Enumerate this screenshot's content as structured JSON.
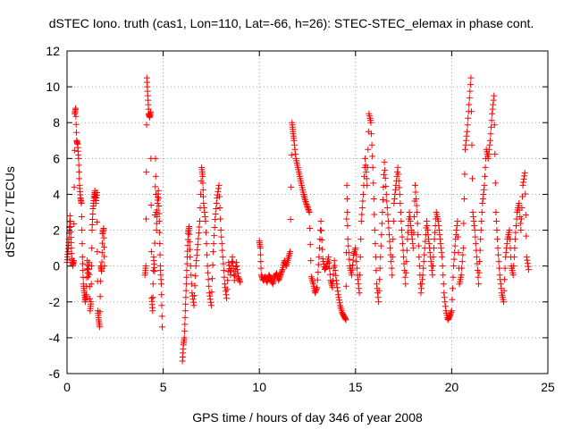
{
  "chart_data": {
    "type": "scatter",
    "title": "dSTEC Iono. truth (cas1, Lon=110, Lat=-66, h=26): STEC-STEC_elemax in phase cont.",
    "xlabel": "GPS time / hours of day 346 of year 2008",
    "ylabel": "dSTEC  / TECUs",
    "xlim": [
      0,
      25
    ],
    "ylim": [
      -6,
      12
    ],
    "xticks": [
      0,
      5,
      10,
      15,
      20,
      25
    ],
    "yticks": [
      -6,
      -4,
      -2,
      0,
      2,
      4,
      6,
      8,
      10,
      12
    ],
    "grid": true,
    "marker": "+",
    "color": "#ff0000",
    "segments": [
      [
        [
          0.0,
          0.2
        ],
        [
          0.05,
          0.8
        ],
        [
          0.1,
          1.5
        ],
        [
          0.15,
          2.8
        ],
        [
          0.2,
          1.6
        ],
        [
          0.25,
          0.4
        ],
        [
          0.3,
          0.0
        ],
        [
          0.35,
          0.3
        ],
        [
          0.4,
          8.5
        ],
        [
          0.45,
          8.8
        ],
        [
          0.5,
          7.0
        ],
        [
          0.55,
          6.8
        ],
        [
          0.6,
          6.0
        ],
        [
          0.65,
          4.5
        ],
        [
          0.7,
          3.8
        ],
        [
          0.75,
          3.5
        ],
        [
          0.8,
          0.5
        ],
        [
          0.85,
          -1.0
        ],
        [
          0.9,
          -1.5
        ],
        [
          0.95,
          -2.0
        ],
        [
          1.0,
          -1.6
        ],
        [
          1.05,
          0.3
        ],
        [
          1.1,
          -0.6
        ],
        [
          1.15,
          0.2
        ],
        [
          1.2,
          -2.5
        ],
        [
          1.25,
          -2.0
        ],
        [
          1.3,
          2.0
        ],
        [
          1.35,
          3.2
        ],
        [
          1.4,
          3.8
        ],
        [
          1.45,
          4.2
        ],
        [
          1.5,
          3.5
        ],
        [
          1.55,
          4.1
        ],
        [
          1.6,
          -2.5
        ],
        [
          1.65,
          -3.0
        ],
        [
          1.7,
          -3.4
        ],
        [
          1.75,
          0.0
        ],
        [
          1.8,
          -0.3
        ],
        [
          1.85,
          1.8
        ],
        [
          1.9,
          2.1
        ],
        [
          1.95,
          0.0
        ]
      ],
      [
        [
          4.05,
          -0.5
        ],
        [
          4.1,
          0.0
        ],
        [
          4.15,
          10.5
        ],
        [
          4.2,
          9.5
        ],
        [
          4.25,
          8.5
        ],
        [
          4.3,
          8.3
        ],
        [
          4.35,
          8.6
        ],
        [
          4.4,
          -1.8
        ],
        [
          4.45,
          -2.5
        ],
        [
          4.5,
          0.5
        ],
        [
          4.55,
          -0.3
        ],
        [
          4.6,
          6.0
        ],
        [
          4.65,
          2.0
        ],
        [
          4.7,
          3.5
        ],
        [
          4.75,
          4.2
        ],
        [
          4.8,
          2.5
        ],
        [
          4.85,
          0.0
        ],
        [
          4.9,
          -1.0
        ],
        [
          4.95,
          -3.4
        ]
      ],
      [
        [
          6.0,
          -5.3
        ],
        [
          6.05,
          -4.4
        ],
        [
          6.1,
          -4.0
        ],
        [
          6.15,
          -2.5
        ],
        [
          6.2,
          -1.0
        ],
        [
          6.25,
          0.5
        ],
        [
          6.3,
          1.8
        ],
        [
          6.35,
          2.2
        ],
        [
          6.4,
          0.5
        ],
        [
          6.5,
          -1.5
        ],
        [
          6.6,
          -2.2
        ],
        [
          6.7,
          0.0
        ],
        [
          6.8,
          1.2
        ],
        [
          6.9,
          2.5
        ],
        [
          7.0,
          5.5
        ],
        [
          7.05,
          5.0
        ],
        [
          7.1,
          3.5
        ],
        [
          7.2,
          2.5
        ],
        [
          7.3,
          0.0
        ],
        [
          7.4,
          -1.5
        ],
        [
          7.5,
          -2.2
        ],
        [
          7.6,
          0.8
        ],
        [
          7.7,
          2.6
        ],
        [
          7.8,
          3.8
        ],
        [
          7.9,
          4.5
        ],
        [
          8.0,
          2.0
        ],
        [
          8.1,
          0.5
        ],
        [
          8.2,
          -1.0
        ],
        [
          8.3,
          -1.8
        ],
        [
          8.4,
          0.2
        ],
        [
          8.5,
          -0.5
        ],
        [
          8.6,
          0.5
        ],
        [
          8.7,
          -0.8
        ],
        [
          8.8,
          0.2
        ],
        [
          8.9,
          -0.6
        ],
        [
          9.0,
          -0.9
        ]
      ],
      [
        [
          10.0,
          1.4
        ],
        [
          10.05,
          1.0
        ],
        [
          10.1,
          -0.5
        ],
        [
          10.2,
          -0.8
        ],
        [
          10.3,
          -0.6
        ],
        [
          10.4,
          -0.9
        ],
        [
          10.5,
          -0.5
        ],
        [
          10.6,
          -0.7
        ],
        [
          10.7,
          -1.0
        ],
        [
          10.8,
          -0.6
        ],
        [
          10.9,
          -0.4
        ],
        [
          11.0,
          -0.8
        ],
        [
          11.1,
          -0.5
        ],
        [
          11.2,
          -0.2
        ],
        [
          11.3,
          0.3
        ],
        [
          11.4,
          0.0
        ],
        [
          11.5,
          0.4
        ],
        [
          11.6,
          0.8
        ],
        [
          11.7,
          8.0
        ],
        [
          11.75,
          7.5
        ],
        [
          11.8,
          7.0
        ],
        [
          11.9,
          6.0
        ],
        [
          12.0,
          5.5
        ],
        [
          12.1,
          5.0
        ],
        [
          12.2,
          4.5
        ],
        [
          12.3,
          4.0
        ],
        [
          12.4,
          3.6
        ],
        [
          12.5,
          3.3
        ],
        [
          12.6,
          3.0
        ],
        [
          12.7,
          -0.6
        ],
        [
          12.8,
          -1.0
        ],
        [
          12.9,
          -1.5
        ],
        [
          13.0,
          -1.2
        ],
        [
          13.1,
          0.5
        ],
        [
          13.2,
          2.5
        ],
        [
          13.3,
          0.4
        ],
        [
          13.4,
          -0.2
        ],
        [
          13.5,
          0.0
        ],
        [
          13.6,
          0.5
        ],
        [
          13.7,
          -0.8
        ],
        [
          13.8,
          -1.2
        ],
        [
          13.9,
          0.3
        ],
        [
          14.0,
          -0.8
        ],
        [
          14.1,
          -1.6
        ],
        [
          14.2,
          -2.2
        ],
        [
          14.3,
          -2.6
        ],
        [
          14.4,
          -2.8
        ],
        [
          14.5,
          -3.0
        ],
        [
          14.55,
          4.5
        ],
        [
          14.6,
          1.5
        ],
        [
          14.7,
          0.0
        ],
        [
          14.8,
          -0.5
        ],
        [
          14.9,
          0.6
        ],
        [
          15.0,
          1.0
        ],
        [
          15.1,
          -0.5
        ],
        [
          15.2,
          -1.5
        ],
        [
          15.3,
          2.5
        ],
        [
          15.4,
          4.0
        ],
        [
          15.5,
          6.0
        ],
        [
          15.6,
          4.5
        ],
        [
          15.7,
          8.5
        ],
        [
          15.8,
          8.0
        ],
        [
          15.9,
          5.5
        ],
        [
          16.0,
          2.0
        ],
        [
          16.1,
          -1.0
        ],
        [
          16.2,
          -2.0
        ],
        [
          16.3,
          0.5
        ],
        [
          16.4,
          3.0
        ],
        [
          16.5,
          5.8
        ],
        [
          16.6,
          4.0
        ],
        [
          16.7,
          2.5
        ],
        [
          16.8,
          1.0
        ],
        [
          16.9,
          -0.5
        ],
        [
          17.0,
          3.5
        ],
        [
          17.1,
          4.5
        ],
        [
          17.2,
          5.5
        ],
        [
          17.3,
          4.0
        ],
        [
          17.4,
          2.0
        ],
        [
          17.5,
          0.5
        ],
        [
          17.6,
          -1.0
        ],
        [
          17.7,
          1.5
        ],
        [
          17.8,
          3.0
        ],
        [
          17.9,
          2.0
        ],
        [
          18.0,
          1.0
        ],
        [
          18.1,
          4.5
        ],
        [
          18.2,
          3.0
        ],
        [
          18.3,
          0.5
        ],
        [
          18.4,
          -1.5
        ],
        [
          18.5,
          -0.5
        ],
        [
          18.6,
          1.0
        ],
        [
          18.7,
          2.5
        ],
        [
          18.8,
          1.5
        ],
        [
          18.9,
          0.5
        ],
        [
          19.0,
          -0.5
        ],
        [
          19.1,
          1.5
        ],
        [
          19.2,
          3.0
        ],
        [
          19.3,
          2.5
        ],
        [
          19.4,
          1.5
        ],
        [
          19.5,
          0.5
        ],
        [
          19.6,
          -1.5
        ],
        [
          19.7,
          -2.5
        ],
        [
          19.8,
          -3.0
        ],
        [
          19.9,
          -2.8
        ],
        [
          20.0,
          -2.5
        ],
        [
          20.1,
          0.0
        ],
        [
          20.2,
          1.5
        ],
        [
          20.3,
          2.5
        ],
        [
          20.4,
          -1.0
        ],
        [
          20.5,
          -0.5
        ],
        [
          20.6,
          1.0
        ],
        [
          20.7,
          6.5
        ],
        [
          20.8,
          7.5
        ],
        [
          20.9,
          9.0
        ],
        [
          21.0,
          10.5
        ],
        [
          21.1,
          3.0
        ],
        [
          21.2,
          2.0
        ],
        [
          21.3,
          0.5
        ],
        [
          21.4,
          -1.0
        ],
        [
          21.5,
          1.5
        ],
        [
          21.6,
          3.5
        ],
        [
          21.7,
          4.5
        ],
        [
          21.8,
          6.5
        ],
        [
          21.9,
          6.0
        ],
        [
          22.0,
          7.0
        ],
        [
          22.1,
          8.5
        ],
        [
          22.2,
          9.5
        ],
        [
          22.3,
          3.0
        ],
        [
          22.4,
          1.0
        ],
        [
          22.5,
          -0.5
        ],
        [
          22.6,
          -1.5
        ],
        [
          22.7,
          -2.0
        ],
        [
          22.8,
          0.5
        ],
        [
          22.9,
          1.5
        ],
        [
          23.0,
          2.0
        ],
        [
          23.1,
          0.0
        ],
        [
          23.2,
          -0.5
        ],
        [
          23.3,
          1.5
        ],
        [
          23.4,
          3.0
        ],
        [
          23.5,
          3.5
        ],
        [
          23.6,
          2.0
        ],
        [
          23.7,
          4.5
        ],
        [
          23.8,
          5.2
        ],
        [
          23.9,
          0.5
        ],
        [
          24.0,
          -0.2
        ]
      ]
    ]
  }
}
